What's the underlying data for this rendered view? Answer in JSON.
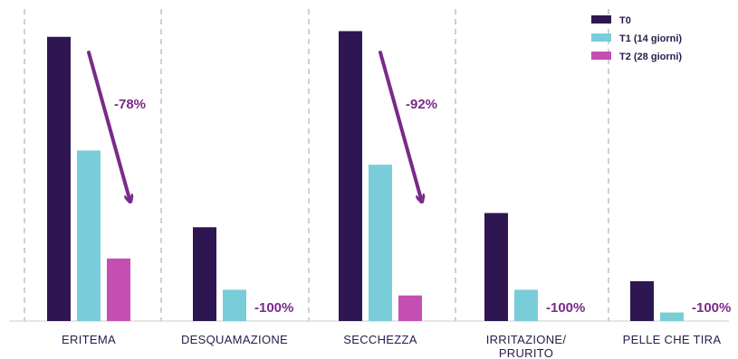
{
  "chart_data": {
    "type": "bar",
    "categories": [
      [
        "ERITEMA"
      ],
      [
        "DESQUAMAZIONE"
      ],
      [
        "SECCHEZZA"
      ],
      [
        "IRRITAZIONE/",
        "PRURITO"
      ],
      [
        "PELLE CHE TIRA"
      ]
    ],
    "series": [
      {
        "name": "T0",
        "values": [
          100,
          33,
          102,
          38,
          14
        ],
        "color": "#2e1652"
      },
      {
        "name": "T1 (14 giorni)",
        "values": [
          60,
          11,
          55,
          11,
          3
        ],
        "color": "#79cdd8"
      },
      {
        "name": "T2 (28 giorni)",
        "values": [
          22,
          0,
          9,
          0,
          0
        ],
        "color": "#c44fb3"
      }
    ],
    "annotations": [
      {
        "category_index": 0,
        "text": "-78%",
        "arrow": true
      },
      {
        "category_index": 1,
        "text": "-100%",
        "arrow": false
      },
      {
        "category_index": 2,
        "text": "-92%",
        "arrow": true
      },
      {
        "category_index": 3,
        "text": "-100%",
        "arrow": false
      },
      {
        "category_index": 4,
        "text": "-100%",
        "arrow": false
      }
    ],
    "ylim": [
      0,
      105
    ],
    "legend": "top-right",
    "grid": false,
    "separators": "dashed-vertical",
    "arrow_color": "#7a2a8a"
  }
}
